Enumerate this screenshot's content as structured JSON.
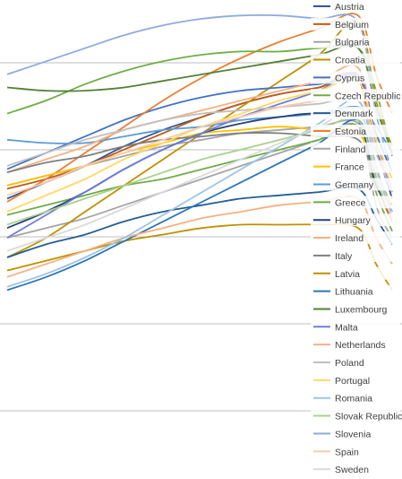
{
  "chart_data": {
    "type": "line",
    "title": "",
    "xlabel": "",
    "ylabel": "",
    "x": [
      0,
      1,
      2,
      3,
      4,
      5,
      6,
      7,
      8,
      9,
      10,
      11
    ],
    "x_ticks_visible": false,
    "y_ticks_visible": false,
    "ylim": [
      0,
      100
    ],
    "grid": true,
    "legend_position": "right",
    "series": [
      {
        "name": "Austria",
        "color": "#2f5597",
        "values": [
          42,
          47,
          52,
          58,
          63,
          67,
          71,
          74,
          76,
          79,
          58,
          42
        ]
      },
      {
        "name": "Belgium",
        "color": "#c55a11",
        "values": [
          45,
          48,
          52,
          57,
          62,
          67,
          71,
          74,
          76,
          79,
          48,
          35
        ]
      },
      {
        "name": "Bulgaria",
        "color": "#a5a5a5",
        "values": [
          30,
          33,
          36,
          40,
          44,
          48,
          52,
          56,
          60,
          64,
          40,
          30
        ]
      },
      {
        "name": "Croatia",
        "color": "#bf9000",
        "values": [
          24,
          30,
          38,
          46,
          54,
          62,
          70,
          78,
          86,
          96,
          72,
          58
        ]
      },
      {
        "name": "Cyprus",
        "color": "#4472c4",
        "values": [
          51,
          56,
          61,
          66,
          70,
          73,
          75,
          76,
          77,
          78,
          62,
          50
        ]
      },
      {
        "name": "Czech Republic",
        "color": "#70ad47",
        "values": [
          37,
          40,
          43,
          46,
          48,
          51,
          54,
          57,
          60,
          64,
          44,
          32
        ]
      },
      {
        "name": "Denmark",
        "color": "#255e91",
        "values": [
          24,
          28,
          31,
          35,
          38,
          40,
          42,
          43,
          44,
          45,
          36,
          28
        ]
      },
      {
        "name": "Estonia",
        "color": "#ed7d31",
        "values": [
          41,
          48,
          56,
          64,
          72,
          79,
          85,
          90,
          94,
          98,
          80,
          68
        ]
      },
      {
        "name": "Finland",
        "color": "#a5a5a5",
        "values": [
          46,
          49,
          52,
          55,
          58,
          60,
          62,
          63,
          64,
          65,
          48,
          38
        ]
      },
      {
        "name": "France",
        "color": "#ffc000",
        "values": [
          46,
          49,
          52,
          56,
          59,
          62,
          63,
          64,
          63,
          62,
          50,
          40
        ]
      },
      {
        "name": "Germany",
        "color": "#5b9bd5",
        "values": [
          60,
          59,
          59,
          61,
          63,
          64,
          66,
          67,
          68,
          70,
          64,
          56
        ]
      },
      {
        "name": "Greece",
        "color": "#70ad47",
        "values": [
          68,
          72,
          77,
          81,
          84,
          86,
          87,
          87,
          88,
          88,
          75,
          55
        ]
      },
      {
        "name": "Hungary",
        "color": "#264478",
        "values": [
          33,
          38,
          44,
          51,
          57,
          62,
          65,
          67,
          68,
          66,
          46,
          40
        ]
      },
      {
        "name": "Ireland",
        "color": "#f4b183",
        "values": [
          50,
          54,
          58,
          63,
          66,
          69,
          72,
          75,
          78,
          82,
          60,
          44
        ]
      },
      {
        "name": "Italy",
        "color": "#7f7f7f",
        "values": [
          50,
          53,
          55,
          58,
          60,
          61,
          62,
          62,
          61,
          60,
          48,
          38
        ]
      },
      {
        "name": "Latvia",
        "color": "#bf9000",
        "values": [
          20,
          23,
          26,
          29,
          31,
          33,
          34,
          34,
          34,
          33,
          22,
          14
        ]
      },
      {
        "name": "Lithuania",
        "color": "#2e75b6",
        "values": [
          14,
          18,
          23,
          29,
          35,
          41,
          47,
          53,
          59,
          66,
          50,
          36
        ]
      },
      {
        "name": "Luxembourg",
        "color": "#548235",
        "values": [
          76,
          75,
          75,
          76,
          78,
          80,
          82,
          84,
          86,
          88,
          70,
          56
        ]
      },
      {
        "name": "Malta",
        "color": "#6f7ddc",
        "values": [
          30,
          37,
          44,
          51,
          57,
          62,
          67,
          71,
          75,
          80,
          60,
          44
        ]
      },
      {
        "name": "Netherlands",
        "color": "#f4b183",
        "values": [
          18,
          22,
          26,
          30,
          33,
          36,
          38,
          40,
          41,
          42,
          30,
          22
        ]
      },
      {
        "name": "Poland",
        "color": "#bfbfbf",
        "values": [
          52,
          56,
          60,
          63,
          66,
          68,
          69,
          70,
          71,
          72,
          56,
          44
        ]
      },
      {
        "name": "Portugal",
        "color": "#ffd966",
        "values": [
          38,
          43,
          48,
          54,
          59,
          64,
          68,
          72,
          75,
          78,
          60,
          48
        ]
      },
      {
        "name": "Romania",
        "color": "#9dc3e6",
        "values": [
          15,
          19,
          24,
          30,
          37,
          44,
          51,
          58,
          65,
          72,
          52,
          38
        ]
      },
      {
        "name": "Slovak Republic",
        "color": "#a9d18e",
        "values": [
          34,
          38,
          42,
          46,
          50,
          54,
          57,
          60,
          63,
          66,
          48,
          36
        ]
      },
      {
        "name": "Slovenia",
        "color": "#8faadc",
        "values": [
          80,
          84,
          88,
          92,
          95,
          97,
          98,
          98,
          97,
          96,
          68,
          50
        ]
      },
      {
        "name": "Spain",
        "color": "#f8cbad",
        "values": [
          43,
          47,
          52,
          56,
          60,
          64,
          67,
          70,
          72,
          74,
          58,
          46
        ]
      },
      {
        "name": "Sweden",
        "color": "#d9d9d9",
        "values": [
          26,
          30,
          34,
          39,
          44,
          49,
          54,
          59,
          64,
          69,
          50,
          36
        ]
      }
    ]
  }
}
